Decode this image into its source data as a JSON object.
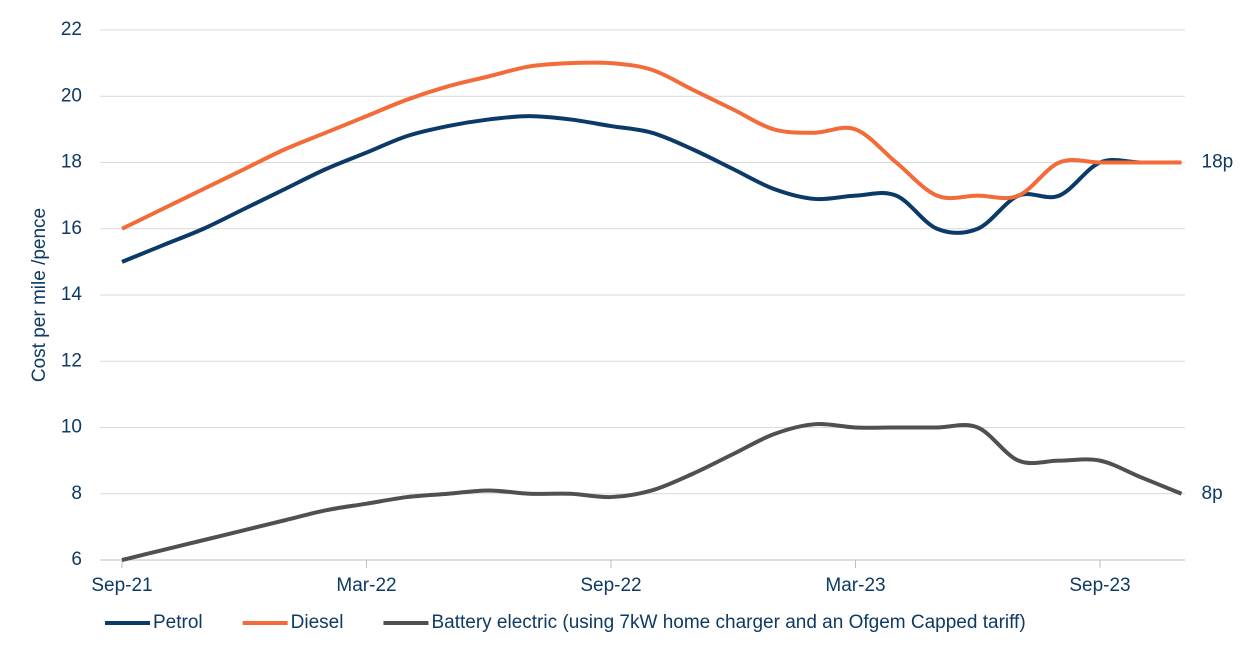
{
  "chart_data": {
    "type": "line",
    "y_label": "Cost per mile /pence",
    "categories": [
      "Sep-21",
      null,
      null,
      null,
      null,
      null,
      "Mar-22",
      null,
      null,
      null,
      null,
      null,
      "Sep-22",
      null,
      null,
      null,
      null,
      null,
      "Mar-23",
      null,
      null,
      null,
      null,
      null,
      "Sep-23",
      null,
      null
    ],
    "series": [
      {
        "name": "Petrol",
        "color": "#0b3a68",
        "values": [
          15,
          15.5,
          16,
          16.6,
          17.2,
          17.8,
          18.3,
          18.8,
          19.1,
          19.3,
          19.4,
          19.3,
          19.1,
          18.9,
          18.4,
          17.8,
          17.2,
          16.9,
          17,
          17,
          16,
          16,
          17,
          17,
          18,
          18,
          18
        ]
      },
      {
        "name": "Diesel",
        "color": "#f26b38",
        "values": [
          16,
          16.6,
          17.2,
          17.8,
          18.4,
          18.9,
          19.4,
          19.9,
          20.3,
          20.6,
          20.9,
          21,
          21,
          20.8,
          20.2,
          19.6,
          19,
          18.9,
          19,
          18,
          17,
          17,
          17,
          18,
          18,
          18,
          18
        ]
      },
      {
        "name": "Battery electric (using 7kW home charger and an Ofgem Capped tariff)",
        "color": "#505050",
        "values": [
          6,
          6.3,
          6.6,
          6.9,
          7.2,
          7.5,
          7.7,
          7.9,
          8,
          8.1,
          8,
          8,
          7.9,
          8.1,
          8.6,
          9.2,
          9.8,
          10.1,
          10,
          10,
          10,
          10,
          9,
          9,
          9,
          8.5,
          8
        ]
      }
    ],
    "annotations": [
      "18p",
      "8p"
    ],
    "ylim": [
      6,
      22
    ],
    "yticks": [
      6,
      8,
      10,
      12,
      14,
      16,
      18,
      20,
      22
    ],
    "grid": true,
    "legend": "bottom"
  }
}
